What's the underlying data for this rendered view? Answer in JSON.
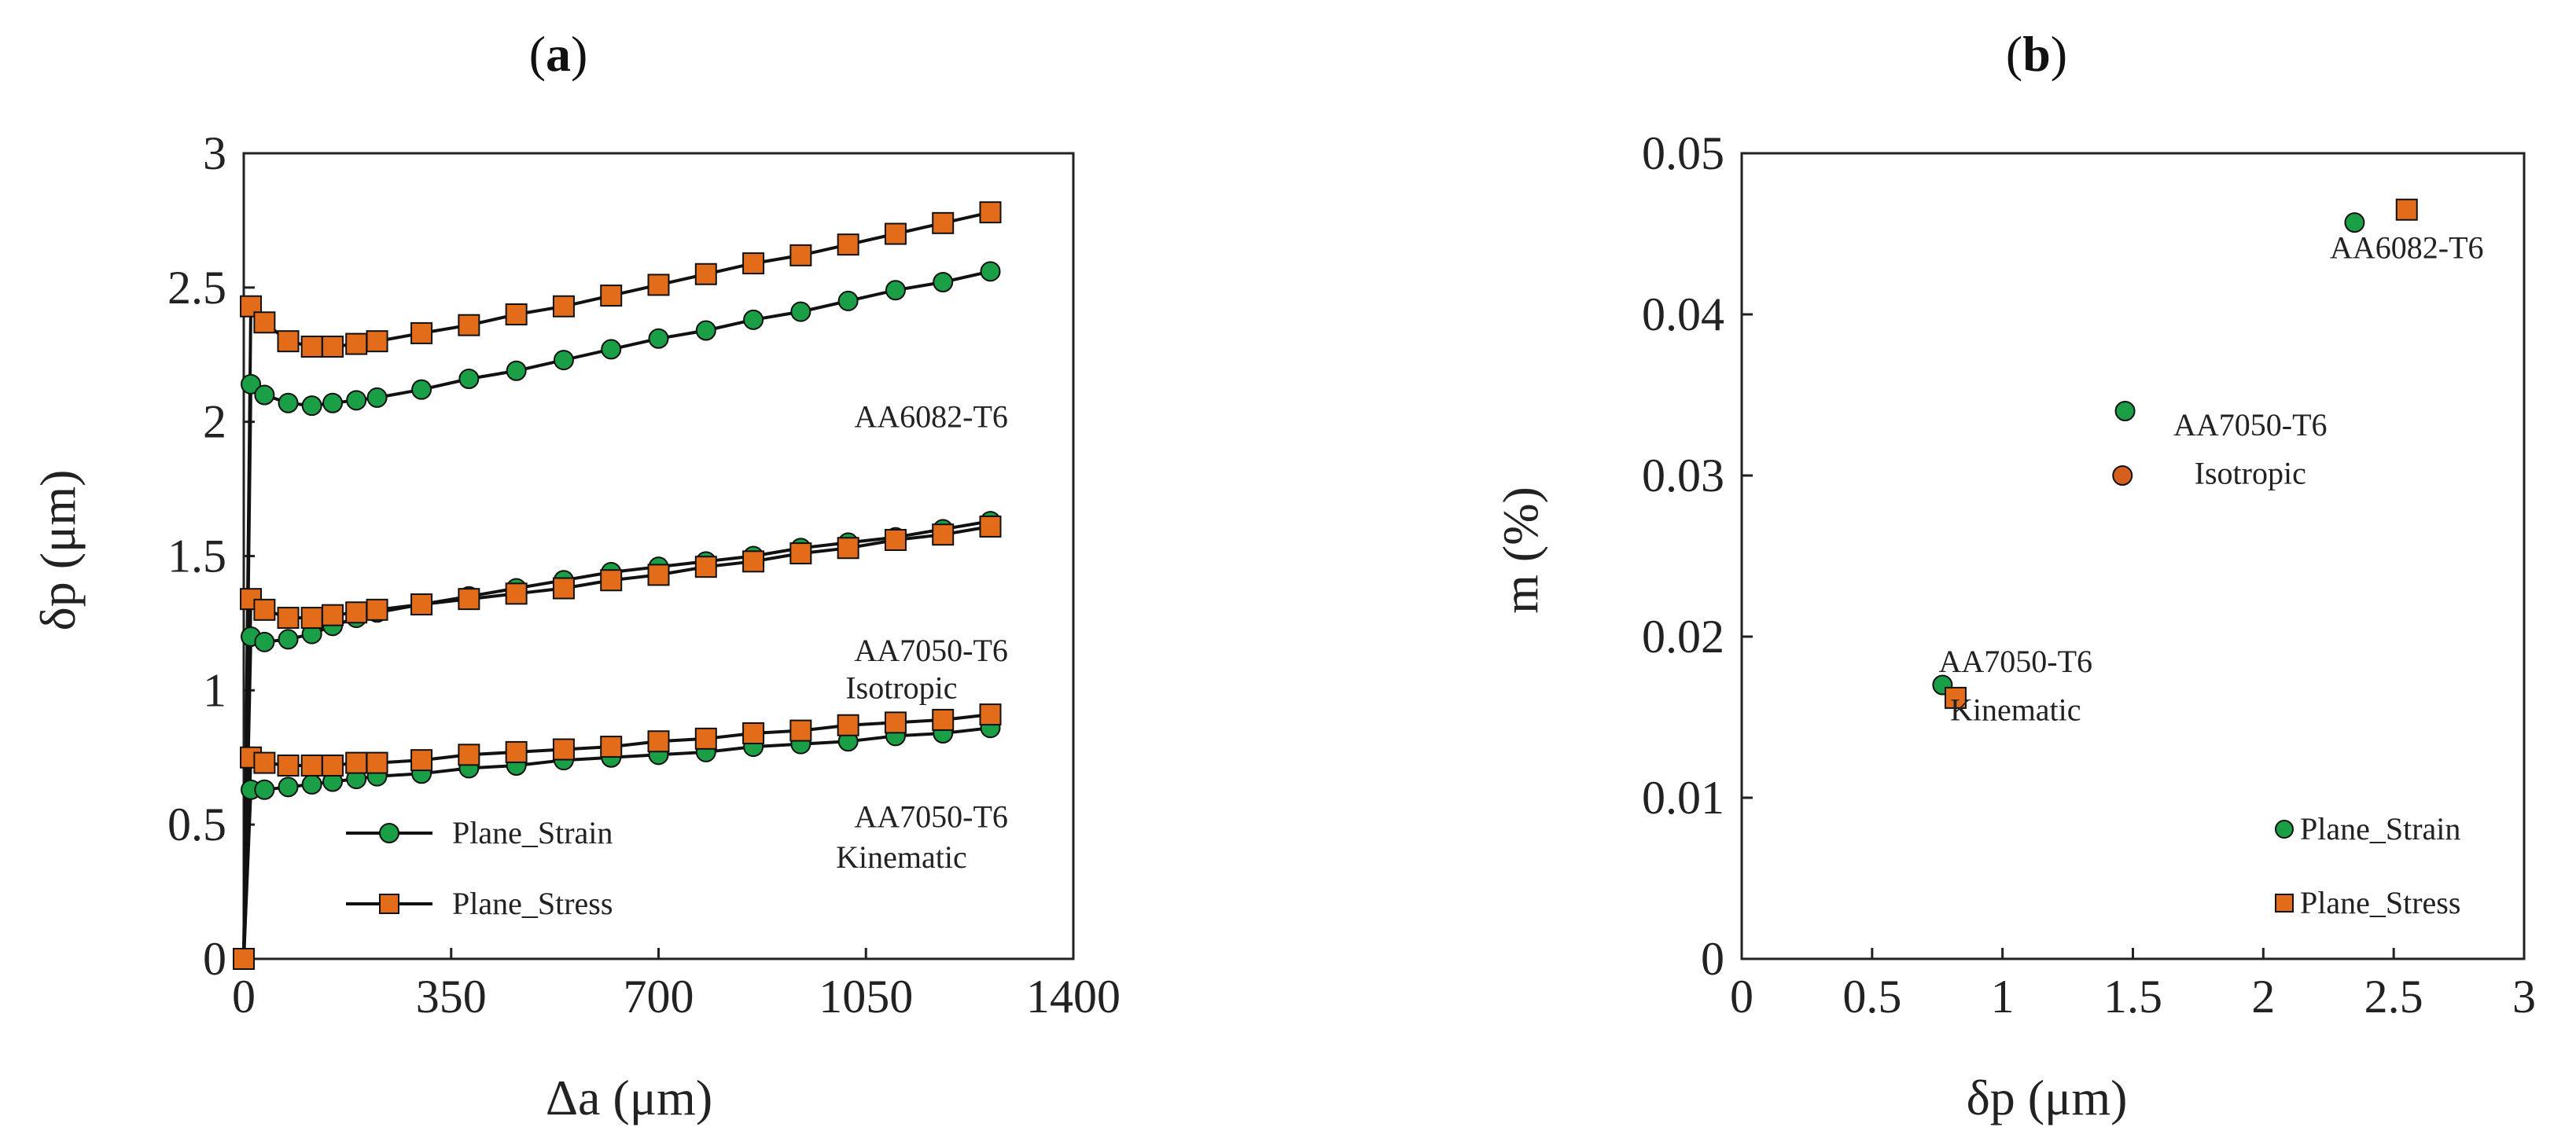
{
  "chart_data": [
    {
      "type": "line",
      "panel_label": "(a)",
      "panel_letter": "a",
      "xlabel": "Δa (μm)",
      "ylabel": "δp (μm)",
      "xlim": [
        0,
        1400
      ],
      "ylim": [
        0,
        3
      ],
      "xticks": [
        0,
        350,
        700,
        1050,
        1400
      ],
      "yticks": [
        0,
        0.5,
        1,
        1.5,
        2,
        2.5,
        3
      ],
      "xtick_labels": [
        "0",
        "350",
        "700",
        "1050",
        "1400"
      ],
      "ytick_labels": [
        "0",
        "0.5",
        "1",
        "1.5",
        "2",
        "2.5",
        "3"
      ],
      "x": [
        0,
        12,
        35,
        75,
        115,
        150,
        190,
        225,
        300,
        380,
        460,
        540,
        620,
        700,
        780,
        860,
        940,
        1020,
        1100,
        1180,
        1260
      ],
      "series": [
        {
          "name": "AA6082-T6 Plane_Strain",
          "marker": "circle",
          "values": [
            0,
            2.14,
            2.1,
            2.07,
            2.06,
            2.07,
            2.08,
            2.09,
            2.12,
            2.16,
            2.19,
            2.23,
            2.27,
            2.31,
            2.34,
            2.38,
            2.41,
            2.45,
            2.49,
            2.52,
            2.56
          ]
        },
        {
          "name": "AA6082-T6 Plane_Stress",
          "marker": "square",
          "values": [
            0,
            2.43,
            2.37,
            2.3,
            2.28,
            2.28,
            2.29,
            2.3,
            2.33,
            2.36,
            2.4,
            2.43,
            2.47,
            2.51,
            2.55,
            2.59,
            2.62,
            2.66,
            2.7,
            2.74,
            2.78
          ]
        },
        {
          "name": "AA7050-T6 Isotropic Plane_Strain",
          "marker": "circle",
          "values": [
            0,
            1.2,
            1.18,
            1.19,
            1.21,
            1.24,
            1.27,
            1.29,
            1.32,
            1.35,
            1.38,
            1.41,
            1.44,
            1.46,
            1.48,
            1.5,
            1.53,
            1.55,
            1.57,
            1.6,
            1.63
          ]
        },
        {
          "name": "AA7050-T6 Isotropic Plane_Stress",
          "marker": "square",
          "values": [
            0,
            1.34,
            1.3,
            1.27,
            1.27,
            1.28,
            1.29,
            1.3,
            1.32,
            1.34,
            1.36,
            1.38,
            1.41,
            1.43,
            1.46,
            1.48,
            1.51,
            1.53,
            1.56,
            1.58,
            1.61
          ]
        },
        {
          "name": "AA7050-T6 Kinematic Plane_Strain",
          "marker": "circle",
          "values": [
            0,
            0.63,
            0.63,
            0.64,
            0.65,
            0.66,
            0.67,
            0.68,
            0.69,
            0.71,
            0.72,
            0.74,
            0.75,
            0.76,
            0.77,
            0.79,
            0.8,
            0.81,
            0.83,
            0.84,
            0.86
          ]
        },
        {
          "name": "AA7050-T6 Kinematic Plane_Stress",
          "marker": "square",
          "values": [
            0,
            0.75,
            0.73,
            0.72,
            0.72,
            0.72,
            0.73,
            0.73,
            0.74,
            0.76,
            0.77,
            0.78,
            0.79,
            0.81,
            0.82,
            0.84,
            0.85,
            0.87,
            0.88,
            0.89,
            0.91
          ]
        }
      ],
      "annotations": [
        {
          "text": "AA6082-T6",
          "x": 1160,
          "y": 1.98
        },
        {
          "text": "AA7050-T6",
          "x": 1160,
          "y": 1.11
        },
        {
          "text": "Isotropic",
          "x": 1110,
          "y": 0.97
        },
        {
          "text": "AA7050-T6",
          "x": 1160,
          "y": 0.49
        },
        {
          "text": "Kinematic",
          "x": 1110,
          "y": 0.34
        }
      ],
      "legend": {
        "position": "bottom-left",
        "entries": [
          "Plane_Strain",
          "Plane_Stress"
        ]
      }
    },
    {
      "type": "scatter",
      "panel_label": "(b)",
      "panel_letter": "b",
      "xlabel": "δp (μm)",
      "ylabel": "m (%)",
      "xlim": [
        0,
        3
      ],
      "ylim": [
        0,
        0.05
      ],
      "xticks": [
        0,
        0.5,
        1,
        1.5,
        2,
        2.5,
        3
      ],
      "yticks": [
        0,
        0.01,
        0.02,
        0.03,
        0.04,
        0.05
      ],
      "xtick_labels": [
        "0",
        "0.5",
        "1",
        "1.5",
        "2",
        "2.5",
        "3"
      ],
      "ytick_labels": [
        "0",
        "0.01",
        "0.02",
        "0.03",
        "0.04",
        "0.05"
      ],
      "series": [
        {
          "name": "Plane_Strain",
          "marker": "circle",
          "points": [
            {
              "x": 2.35,
              "y": 0.0457
            },
            {
              "x": 1.47,
              "y": 0.034
            },
            {
              "x": 0.77,
              "y": 0.017
            }
          ]
        },
        {
          "name": "Plane_Stress",
          "marker": "square",
          "points": [
            {
              "x": 2.55,
              "y": 0.0465
            },
            {
              "x": 1.46,
              "y": 0.03
            },
            {
              "x": 0.82,
              "y": 0.0162
            }
          ]
        }
      ],
      "annotations": [
        {
          "text": "AA6082-T6",
          "x": 2.55,
          "y": 0.0435
        },
        {
          "text": "AA7050-T6",
          "x": 1.95,
          "y": 0.0325
        },
        {
          "text": "Isotropic",
          "x": 1.95,
          "y": 0.0295
        },
        {
          "text": "AA7050-T6",
          "x": 1.05,
          "y": 0.0178
        },
        {
          "text": "Kinematic",
          "x": 1.05,
          "y": 0.0148
        }
      ],
      "legend": {
        "position": "bottom-right",
        "entries": [
          "Plane_Strain",
          "Plane_Stress"
        ]
      }
    }
  ],
  "colors": {
    "plane_strain": "#1a9e46",
    "plane_stress": "#e36c1a",
    "isotropic_point": "#d65f1d",
    "line": "#111111",
    "axis": "#222222"
  }
}
